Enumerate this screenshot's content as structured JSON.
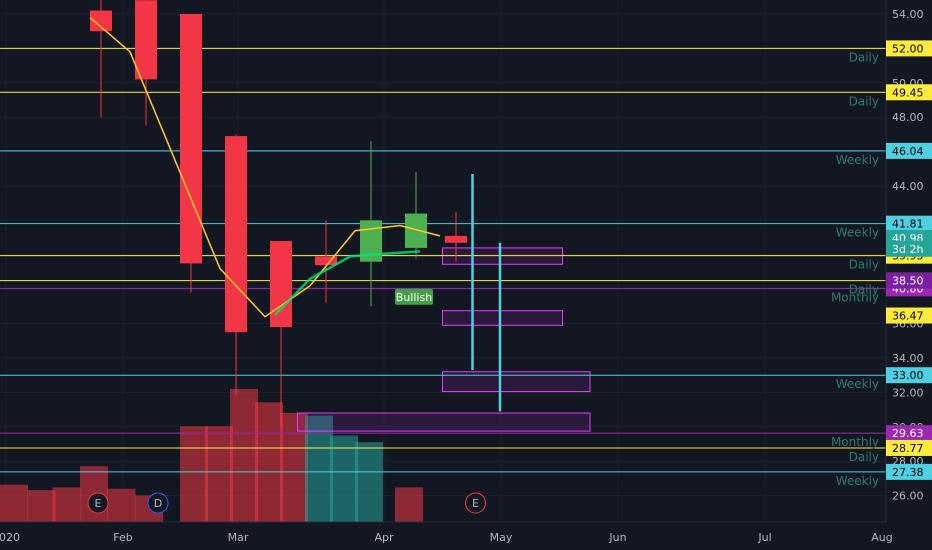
{
  "chart_data": {
    "type": "candlestick",
    "y_axis": {
      "position": "right",
      "range": [
        25,
        55
      ],
      "ticks": [
        54,
        52,
        50,
        48,
        46,
        44,
        42,
        40,
        38,
        36,
        34,
        32,
        30,
        28,
        26
      ]
    },
    "x_axis": {
      "labels": [
        "2020",
        "Feb",
        "Mar",
        "Apr",
        "May",
        "Jun",
        "Jul",
        "Aug"
      ]
    },
    "candles": [
      {
        "x": 1.8,
        "open": 54.2,
        "high": 57.0,
        "low": 48.0,
        "close": 53.0
      },
      {
        "x": 2.7,
        "open": 54.8,
        "high": 56.0,
        "low": 47.5,
        "close": 50.2
      },
      {
        "x": 3.6,
        "open": 54.0,
        "high": 54.0,
        "low": 37.8,
        "close": 39.5
      },
      {
        "x": 4.5,
        "open": 46.9,
        "high": 47.0,
        "low": 31.8,
        "close": 35.5
      },
      {
        "x": 5.4,
        "open": 40.8,
        "high": 40.8,
        "low": 30.0,
        "close": 35.8
      },
      {
        "x": 6.3,
        "open": 39.9,
        "high": 42.0,
        "low": 37.2,
        "close": 39.4
      },
      {
        "x": 7.2,
        "open": 39.6,
        "high": 46.6,
        "low": 37.0,
        "close": 42.0
      },
      {
        "x": 8.1,
        "open": 40.4,
        "high": 44.8,
        "low": 39.8,
        "close": 42.4
      },
      {
        "x": 8.9,
        "open": 41.1,
        "high": 42.5,
        "low": 39.6,
        "close": 40.7
      }
    ],
    "volume": [
      {
        "x": 0,
        "value": 0.28,
        "dir": "down"
      },
      {
        "x": 0.55,
        "value": 0.24,
        "dir": "down"
      },
      {
        "x": 1.05,
        "value": 0.26,
        "dir": "down"
      },
      {
        "x": 1.6,
        "value": 0.42,
        "dir": "down"
      },
      {
        "x": 2.15,
        "value": 0.25,
        "dir": "down"
      },
      {
        "x": 2.7,
        "value": 0.2,
        "dir": "down"
      },
      {
        "x": 3.6,
        "value": 0.72,
        "dir": "down"
      },
      {
        "x": 4.1,
        "value": 0.72,
        "dir": "down"
      },
      {
        "x": 4.6,
        "value": 1.0,
        "dir": "down"
      },
      {
        "x": 5.1,
        "value": 0.9,
        "dir": "down"
      },
      {
        "x": 5.6,
        "value": 0.82,
        "dir": "down"
      },
      {
        "x": 6.1,
        "value": 0.8,
        "dir": "up"
      },
      {
        "x": 6.6,
        "value": 0.65,
        "dir": "up"
      },
      {
        "x": 7.1,
        "value": 0.6,
        "dir": "up"
      },
      {
        "x": 7.9,
        "value": 0.26,
        "dir": "down"
      }
    ],
    "moving_average": [
      {
        "x": 1.8,
        "y": 53.8
      },
      {
        "x": 2.6,
        "y": 51.8
      },
      {
        "x": 3.5,
        "y": 45.5
      },
      {
        "x": 4.4,
        "y": 39.2
      },
      {
        "x": 5.3,
        "y": 36.4
      },
      {
        "x": 6.2,
        "y": 38.2
      },
      {
        "x": 7.1,
        "y": 41.4
      },
      {
        "x": 8.0,
        "y": 41.7
      },
      {
        "x": 8.8,
        "y": 41.1
      }
    ],
    "bullish_line": [
      {
        "x": 5.5,
        "y": 36.5
      },
      {
        "x": 6.2,
        "y": 38.6
      },
      {
        "x": 7.0,
        "y": 39.9
      },
      {
        "x": 7.4,
        "y": 40.0
      },
      {
        "x": 8.4,
        "y": 40.2
      }
    ],
    "levels": [
      {
        "value": "52.00",
        "y": 52.0,
        "type": "Daily",
        "color": "#ffeb3b",
        "text": "#000000"
      },
      {
        "value": "49.45",
        "y": 49.45,
        "type": "Daily",
        "color": "#ffeb3b",
        "text": "#000000"
      },
      {
        "value": "46.04",
        "y": 46.04,
        "type": "Weekly",
        "color": "#4dd0e1",
        "text": "#000000"
      },
      {
        "value": "41.81",
        "y": 41.81,
        "type": "Weekly",
        "color": "#4dd0e1",
        "text": "#000000"
      },
      {
        "value": "39.95",
        "y": 39.95,
        "type": "Daily",
        "color": "#ffeb3b",
        "text": "#000000"
      },
      {
        "value": "38.50",
        "y": 38.5,
        "type": "Daily",
        "color": "#ffeb3b",
        "text": "#000000"
      },
      {
        "value": "40.80",
        "y": 38.05,
        "type": "Monthly",
        "color": "#9c27b0",
        "text": "#ffffff"
      },
      {
        "value": "33.00",
        "y": 33.0,
        "type": "Weekly",
        "color": "#4dd0e1",
        "text": "#000000"
      },
      {
        "value": "29.63",
        "y": 29.63,
        "type": "Monthly",
        "color": "#9c27b0",
        "text": "#ffffff"
      },
      {
        "value": "28.77",
        "y": 28.77,
        "type": "Daily",
        "color": "#ffeb3b",
        "text": "#000000"
      },
      {
        "value": "27.38",
        "y": 27.38,
        "type": "Weekly",
        "color": "#4dd0e1",
        "text": "#000000"
      }
    ],
    "price_tags": [
      {
        "text": "40.98",
        "y": 40.98,
        "color": "#26a69a",
        "text_color": "#ffffff"
      },
      {
        "text": "3d 2h",
        "y": 40.35,
        "color": "#26a69a",
        "text_color": "#ffffff"
      },
      {
        "text": "38.50",
        "y": 38.5,
        "color": "#7b1fa2",
        "text_color": "#ffffff"
      },
      {
        "text": "36.47",
        "y": 36.47,
        "color": "#ffeb3b",
        "text_color": "#000000"
      }
    ],
    "zones": [
      {
        "x1": 8.85,
        "x2": 11.25,
        "y1": 40.4,
        "y2": 39.45
      },
      {
        "x1": 8.85,
        "x2": 11.25,
        "y1": 36.75,
        "y2": 35.9
      },
      {
        "x1": 8.85,
        "x2": 11.8,
        "y1": 33.2,
        "y2": 32.05
      },
      {
        "x1": 5.95,
        "x2": 11.8,
        "y1": 30.8,
        "y2": 29.75
      }
    ],
    "vertical_lines": [
      {
        "x": 9.45,
        "y1": 44.7,
        "y2": 33.3
      },
      {
        "x": 10.0,
        "y1": 40.7,
        "y2": 30.9
      }
    ],
    "annotations": [
      {
        "text": "Bullish",
        "x": 7.9,
        "y": 37.5
      }
    ],
    "event_markers": [
      {
        "label": "E",
        "x": 1.9
      },
      {
        "label": "D",
        "x": 3.1
      },
      {
        "label": "E",
        "x": 9.45
      }
    ],
    "colors": {
      "up": "#4caf50",
      "down": "#f23645",
      "ma": "#ffca28",
      "background": "#131722"
    }
  }
}
